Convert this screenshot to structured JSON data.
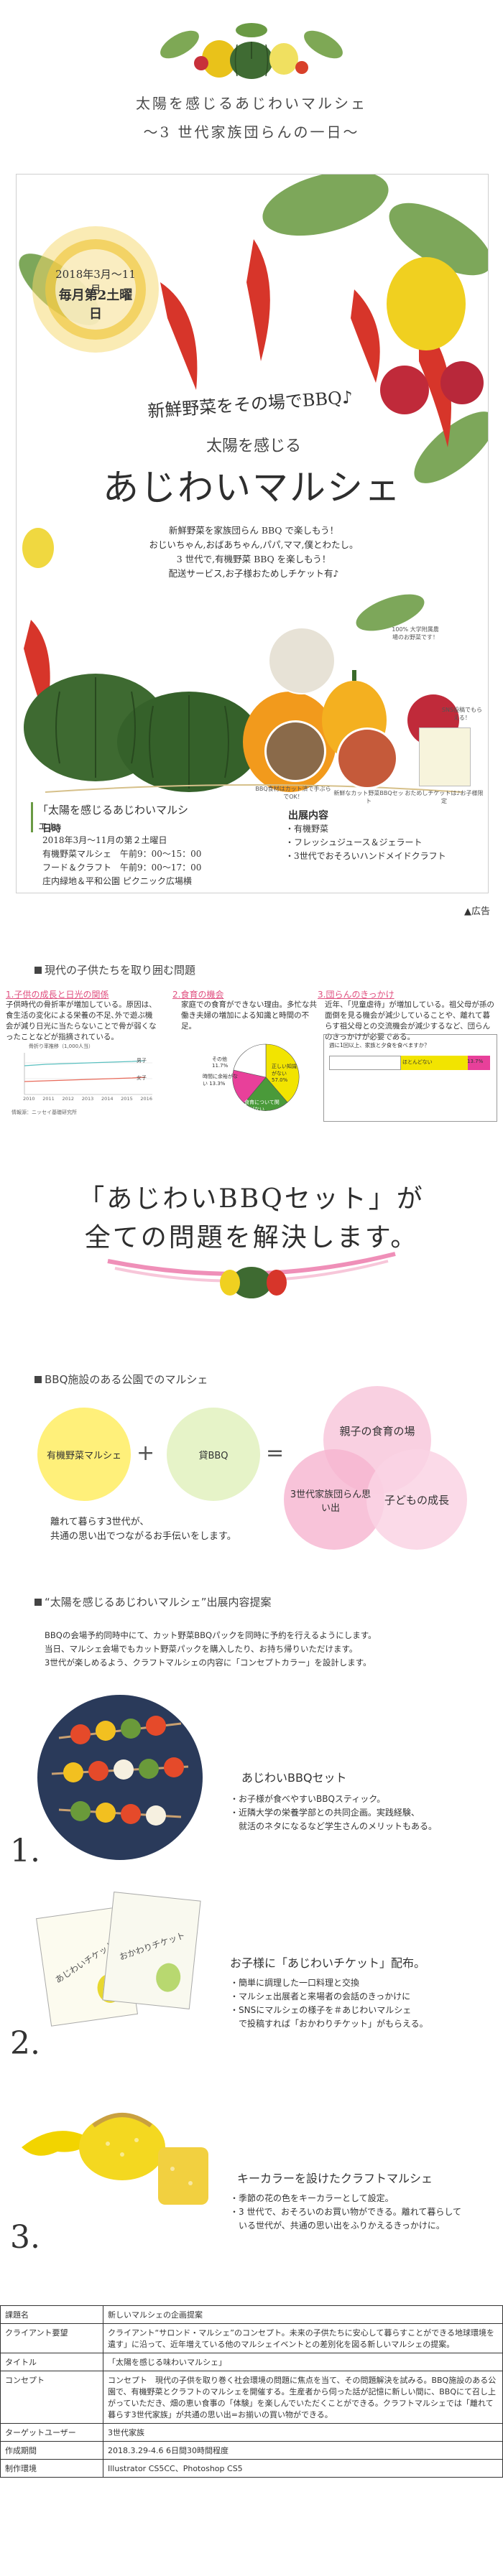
{
  "header": {
    "title": "太陽を感じるあじわいマルシェ",
    "subtitle": "～3 世代家族団らんの一日～"
  },
  "poster": {
    "date_line1": "2018年3月～11月",
    "date_line2": "毎月第2土曜日",
    "catch1": "新鮮野菜をその場でBBQ♪",
    "catch2": "太陽を感じる",
    "main_title": "あじわいマルシェ",
    "intro": [
      "新鮮野菜を家族団らん BBQ で楽しもう！",
      "おじいちゃん,おばあちゃん,パパ,ママ,僕とわたし。",
      "3 世代で,有機野菜 BBQ を楽しもう！",
      "配送サービス,お子様おためしチケット有♪"
    ],
    "bubble1": "BBQ食材はカット済で手ぶらでOK！",
    "bubble2": "新鮮なカット野菜BBQセット",
    "bubble3": "おためしチケットは♪お子様限定",
    "bubble4": "SNS投稿でもらえる！",
    "bubble5": "100% 大学附属農場のお野菜です！",
    "info_box_title": "「太陽を感じるあじわいマルシェ」",
    "schedule_head": "日時",
    "schedule": [
      "2018年3月～11月の第２土曜日",
      "有機野菜マルシェ　午前9：00～15：00",
      "フード＆クラフト　午前9：00～17：00",
      "庄内緑地＆平和公園 ピクニック広場横"
    ],
    "exhibit_head": "出展内容",
    "exhibits": [
      "・有機野菜",
      "・フレッシュジュース＆ジェラート",
      "・3世代でおそろいハンドメイドクラフト"
    ]
  },
  "ad_label": "▲広告",
  "sec1": {
    "title": "現代の子供たちを取り囲む問題",
    "col1_head": "1.子供の成長と日光の関係",
    "col1_text": "子供時代の骨折率が増加している。原因は、食生活の変化による栄養の不足､外で遊ぶ機会が減り日光に当たらないことで骨が弱くなったことなどが指摘されている。",
    "col1_chart_title": "骨折り率推移（1,000人当）",
    "col1_series": [
      "男子",
      "女子"
    ],
    "col1_years": [
      "2010",
      "2011",
      "2012",
      "2013",
      "2014",
      "2015",
      "2016"
    ],
    "col1_source": "情報源：ニッセイ基礎研究所",
    "col2_head": "2.食育の機会",
    "col2_text": "家庭での食育ができない理由。多忙な共働き夫婦の増加による知識と時間の不足。",
    "col2_pie_labels": [
      "その他 11.7%",
      "時間に余裕がない 13.3%",
      "食育について関心がない 15.4%",
      "正しい知識がない 57.0%"
    ],
    "col3_head": "3.団らんのきっかけ",
    "col3_text": "近年、「児童虐待」が増加している。祖父母が孫の面倒を見る機会が減少していることや、離れて暮らす祖父母との交流機会が減少するなど、団らんのきっかけが必要である。",
    "col3_chart_title": "週に1回以上、家族と夕食を食べますか？",
    "col3_labels": [
      "ほとんど毎日",
      "週2～3日",
      "ほとんどない"
    ],
    "col3_values": [
      "",
      "",
      "13.7%"
    ]
  },
  "banner": {
    "line1": "「あじわいBBQセット」が",
    "line2": "全ての問題を解決します。"
  },
  "sec2": {
    "title": "BBQ施設のある公園でのマルシェ",
    "circle1": "有機野菜マルシェ",
    "plus": "+",
    "circle2": "貸BBQ",
    "equals": "=",
    "result1": "親子の食育の場",
    "result2": "3世代家族団らん思い出",
    "result3": "子どもの成長",
    "note1": "離れて暮らす3世代が、",
    "note2": "共通の思い出でつながるお手伝いをします。"
  },
  "sec3": {
    "title": "“太陽を感じるあじわいマルシェ”出展内容提案",
    "intro": [
      "BBQの会場予約同時中にて、カット野菜BBQパックを同時に予約を行えるようにします。",
      "当日、マルシェ会場でもカット野菜パックを購入したり、お持ち帰りいただけます。",
      "3世代が楽しめるよう、クラフトマルシェの内容に「コンセプトカラー」を設計します。"
    ],
    "items": [
      {
        "num": "1.",
        "title": "あじわいBBQセット",
        "body": [
          "・お子様が食べやすいBBQスティック。",
          "・近隣大学の栄養学部との共同企画。実践経験、",
          "　就活のネタになるなど学生さんのメリットもある。"
        ]
      },
      {
        "num": "2.",
        "title": "お子様に「あじわいチケット」配布。",
        "body": [
          "・簡単に調理した一口料理と交換",
          "・マルシェ出展者と来場者の会話のきっかけに",
          "・SNSにマルシェの様子を＃あじわいマルシェ",
          "　で投稿すれば「おかわりチケット」がもらえる。"
        ]
      },
      {
        "num": "3.",
        "title": "キーカラーを設けたクラフトマルシェ",
        "body": [
          "・季節の花の色をキーカラーとして設定。",
          "・3 世代で、おそろいのお買い物ができる。離れて暮らして",
          "　いる世代が、共通の思い出をふりかえるきっかけに。"
        ]
      }
    ],
    "ticket_text": "あじわいチケット",
    "ticket_text2": "おかわりチケット"
  },
  "table": [
    {
      "k": "課題名",
      "v": "新しいマルシェの企画提案"
    },
    {
      "k": "クライアント要望",
      "v": "クライアント“サロンド・マルシェ”のコンセプト。未来の子供たちに安心して暮らすことができる地球環境を遺す」に沿って、近年増えている他のマルシェイベントとの差別化を図る新しいマルシェの提案。"
    },
    {
      "k": "タイトル",
      "v": "「太陽を感じる味わいマルシェ」"
    },
    {
      "k": "コンセプト",
      "v": "コンセプト　現代の子供を取り巻く社会環境の問題に焦点を当て、その問題解決を試みる。BBQ施設のある公園で、有機野菜とクラフトのマルシェを開催する。生産者から伺った話が記憶に新しい間に、BBQにて召し上がっていただき、畑の恵い食事の「体験」を楽しんでいただくことができる。クラフトマルシェでは「離れて暮らす3世代家族」が共通の思い出=お揃いの買い物ができる。"
    },
    {
      "k": "ターゲットユーザー",
      "v": "3世代家族"
    },
    {
      "k": "作成期間",
      "v": "2018.3.29-4.6  6日間30時間程度"
    },
    {
      "k": "制作環境",
      "v": "Illustrator CS5CC、Photoshop CS5"
    }
  ],
  "colors": {
    "pink": "#e8609a",
    "yellow": "#f2d400",
    "green": "#5a8a3a",
    "pale_pink": "#f8c8dc",
    "pale_yellow": "#fff4a0"
  }
}
